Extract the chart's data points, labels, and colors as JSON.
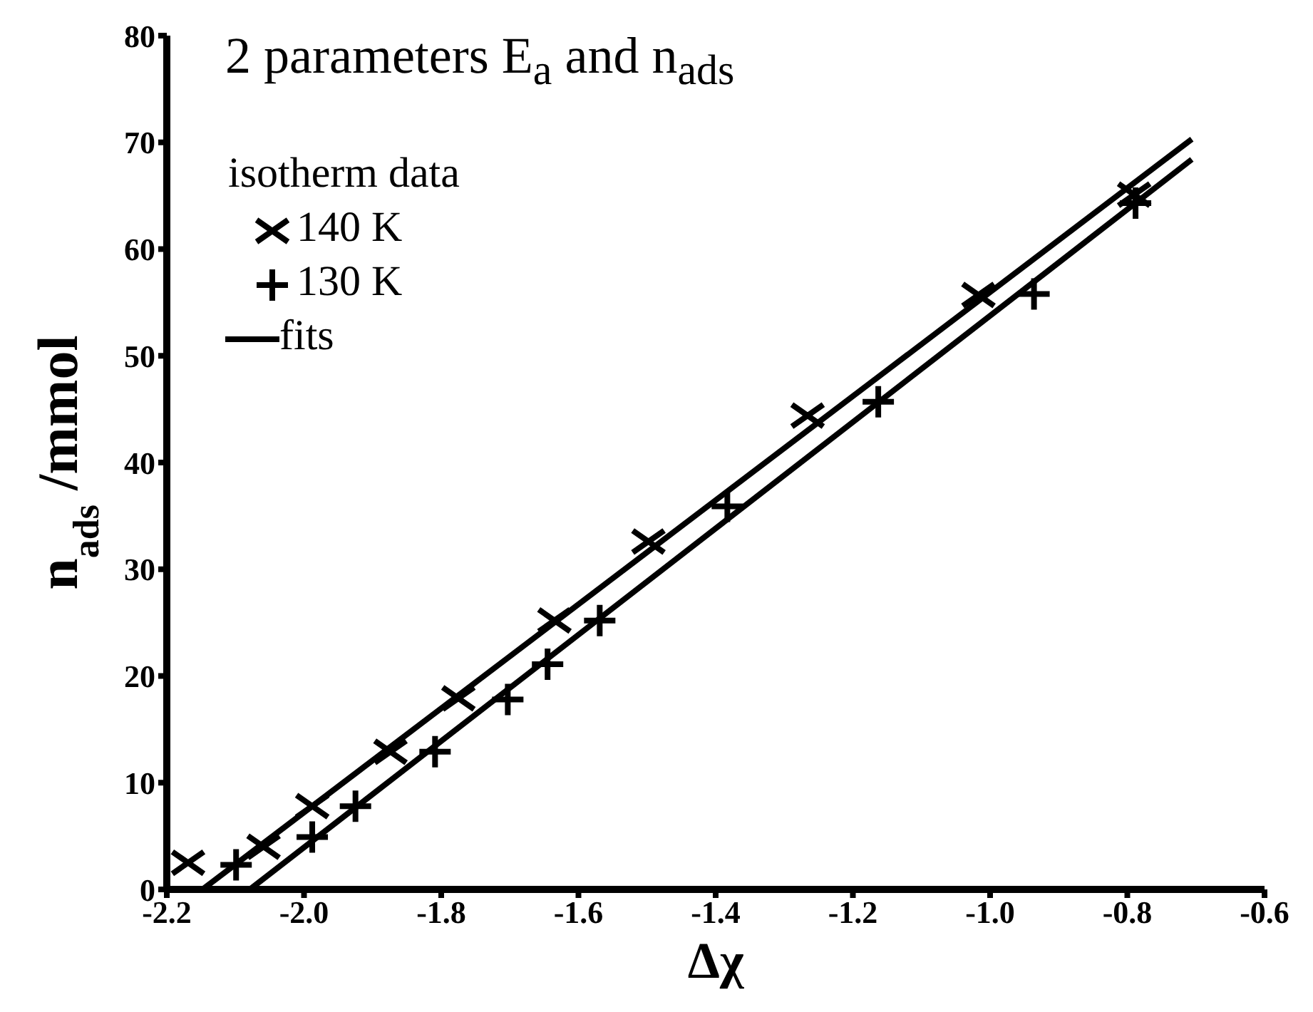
{
  "chart_data": {
    "type": "scatter",
    "title": "2 parameters E$_{a}$ and n$_{ads}$",
    "legend_title": "isotherm data",
    "xlabel": "Δχ",
    "ylabel": "n$_{ads}$ /mmol",
    "xlim": [
      -2.2,
      -0.6
    ],
    "ylim": [
      0,
      80
    ],
    "xticks": [
      {
        "value": -2.2,
        "label": "-2.2"
      },
      {
        "value": -2.0,
        "label": "-2.0"
      },
      {
        "value": -1.8,
        "label": "-1.8"
      },
      {
        "value": -1.6,
        "label": "-1.6"
      },
      {
        "value": -1.4,
        "label": "-1.4"
      },
      {
        "value": -1.2,
        "label": "-1.2"
      },
      {
        "value": -1.0,
        "label": "-1.0"
      },
      {
        "value": -0.8,
        "label": "-0.8"
      },
      {
        "value": -0.6,
        "label": "-0.6"
      }
    ],
    "yticks": [
      0,
      10,
      20,
      30,
      40,
      50,
      60,
      70,
      80
    ],
    "grid": false,
    "legend": "top left",
    "series": [
      {
        "name": "140 K",
        "type": "scatter",
        "marker": "x",
        "color": "#000000",
        "x": [
          -2.169,
          -2.059,
          -1.988,
          -1.874,
          -1.775,
          -1.635,
          -1.498,
          -1.266,
          -1.017,
          -0.79
        ],
        "values": [
          2.5,
          4.0,
          7.8,
          12.9,
          17.9,
          25.2,
          32.6,
          44.4,
          55.7,
          65.1
        ]
      },
      {
        "name": "130 K",
        "type": "scatter",
        "marker": "cross",
        "color": "#000000",
        "x": [
          -2.099,
          -1.988,
          -1.925,
          -1.809,
          -1.703,
          -1.645,
          -1.569,
          -1.383,
          -1.163,
          -0.936,
          -0.788
        ],
        "values": [
          2.3,
          4.9,
          7.8,
          12.9,
          17.8,
          21.1,
          25.2,
          35.9,
          45.7,
          55.8,
          64.3
        ]
      },
      {
        "name": "fits",
        "type": "line",
        "marker": "none",
        "color": "#000000",
        "x": [
          -2.148,
          -0.706
        ],
        "values": [
          0,
          70.3
        ]
      },
      {
        "type": "line",
        "marker": "none",
        "color": "#000000",
        "x": [
          -2.079,
          -0.706
        ],
        "values": [
          0,
          68.4
        ]
      }
    ]
  }
}
